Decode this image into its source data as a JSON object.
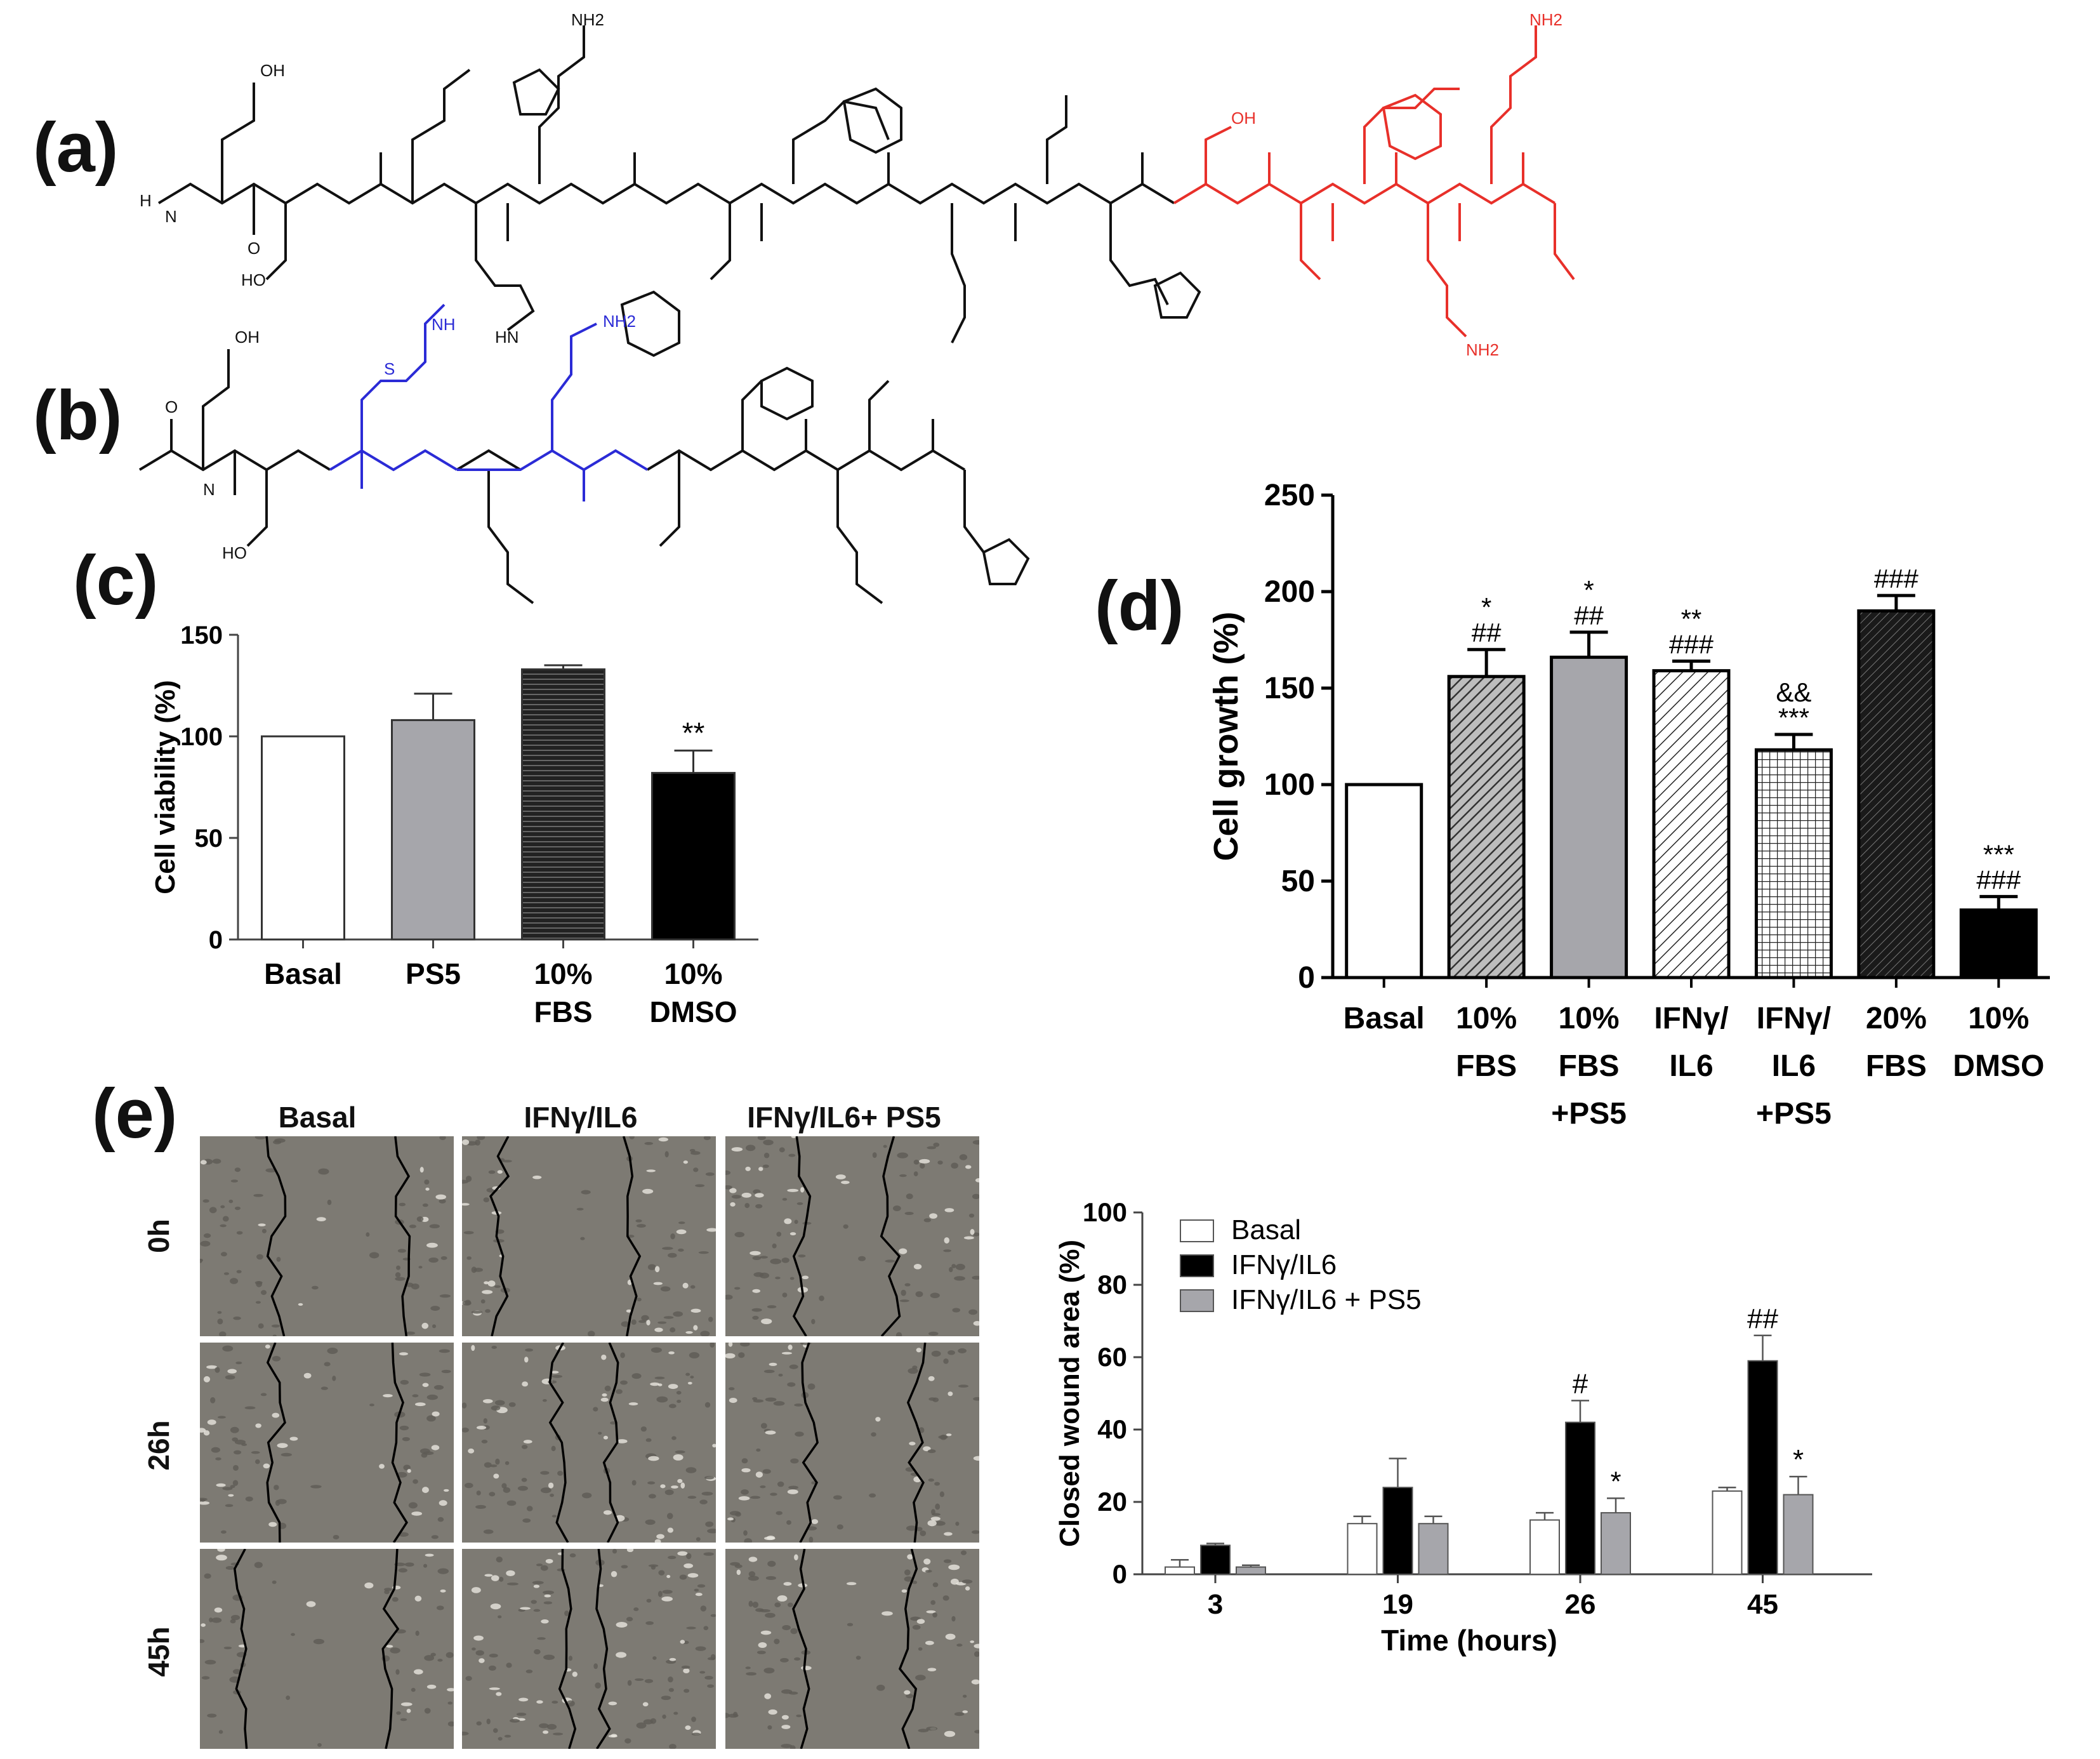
{
  "panels": {
    "a": {
      "label": "(a)"
    },
    "b": {
      "label": "(b)"
    },
    "c": {
      "label": "(c)"
    },
    "d": {
      "label": "(d)"
    },
    "e": {
      "label": "(e)"
    }
  },
  "structure_a": {
    "labels": [
      "H",
      "N",
      "OH",
      "O",
      "HO",
      "H",
      "NH",
      "NH2",
      "HN",
      "OH"
    ]
  },
  "structure_b": {
    "labels": [
      "O",
      "N",
      "H",
      "OH",
      "S",
      "NH",
      "NH2",
      "HO"
    ]
  },
  "micrographs": {
    "columns": [
      "Basal",
      "IFNγ/IL6",
      "IFNγ/IL6+ PS5"
    ],
    "rows": [
      "0h",
      "26h",
      "45h"
    ]
  },
  "colors": {
    "black": "#000000",
    "white": "#ffffff",
    "grey": "#a6a6ab",
    "peptide_highlight_red": "#e8302a",
    "peptide_highlight_blue": "#2b2bd6"
  },
  "chart_data": [
    {
      "id": "c",
      "type": "bar",
      "ylabel": "Cell viability (%)",
      "ylim": [
        0,
        150
      ],
      "yticks": [
        0,
        50,
        100,
        150
      ],
      "categories": [
        "Basal",
        "PS5",
        "10% FBS",
        "10% DMSO"
      ],
      "category_lines": [
        [
          "Basal"
        ],
        [
          "PS5"
        ],
        [
          "10%",
          "FBS"
        ],
        [
          "10%",
          "DMSO"
        ]
      ],
      "values": [
        100,
        108,
        133,
        82
      ],
      "errors": [
        0,
        13,
        2,
        11
      ],
      "fills": [
        "white",
        "grey",
        "hstripes",
        "black"
      ],
      "annotations": [
        "",
        "",
        "",
        "**"
      ]
    },
    {
      "id": "d",
      "type": "bar",
      "ylabel": "Cell growth (%)",
      "ylim": [
        0,
        250
      ],
      "yticks": [
        0,
        50,
        100,
        150,
        200,
        250
      ],
      "categories": [
        "Basal",
        "10% FBS",
        "10% FBS +PS5",
        "IFNγ/ IL6",
        "IFNγ/ IL6 +PS5",
        "20% FBS",
        "10% DMSO"
      ],
      "category_lines": [
        [
          "Basal"
        ],
        [
          "10%",
          "FBS"
        ],
        [
          "10%",
          "FBS",
          "+PS5"
        ],
        [
          "IFNγ/",
          "IL6"
        ],
        [
          "IFNγ/",
          "IL6",
          "+PS5"
        ],
        [
          "20%",
          "FBS"
        ],
        [
          "10%",
          "DMSO"
        ]
      ],
      "values": [
        100,
        156,
        166,
        159,
        118,
        190,
        35
      ],
      "errors": [
        0,
        14,
        13,
        5,
        8,
        8,
        7
      ],
      "fills": [
        "white",
        "hatch-dense",
        "grey",
        "hatch-light",
        "grid",
        "hatch-dark",
        "black"
      ],
      "annotations": [
        [],
        [
          "*",
          "##"
        ],
        [
          "*",
          "##"
        ],
        [
          "**",
          "###"
        ],
        [
          "&&",
          "***"
        ],
        [
          "###"
        ],
        [
          "***",
          "###"
        ]
      ]
    },
    {
      "id": "e",
      "type": "bar",
      "xlabel": "Time (hours)",
      "ylabel": "Closed wound area (%)",
      "ylim": [
        0,
        100
      ],
      "yticks": [
        0,
        20,
        40,
        60,
        80,
        100
      ],
      "categories": [
        "3",
        "19",
        "26",
        "45"
      ],
      "series": [
        {
          "name": "Basal",
          "fill": "white",
          "values": [
            2,
            14,
            15,
            23
          ],
          "errors": [
            2,
            2,
            2,
            1
          ],
          "annotations": [
            "",
            "",
            "",
            ""
          ]
        },
        {
          "name": "IFNγ/IL6",
          "fill": "black",
          "values": [
            8,
            24,
            42,
            59
          ],
          "errors": [
            0.5,
            8,
            6,
            7
          ],
          "annotations": [
            "",
            "",
            "#",
            "##"
          ]
        },
        {
          "name": "IFNγ/IL6 + PS5",
          "fill": "grey",
          "values": [
            2,
            14,
            17,
            22
          ],
          "errors": [
            0.5,
            2,
            4,
            5
          ],
          "annotations": [
            "",
            "",
            "*",
            "*"
          ]
        }
      ],
      "legend": "top-left"
    }
  ]
}
